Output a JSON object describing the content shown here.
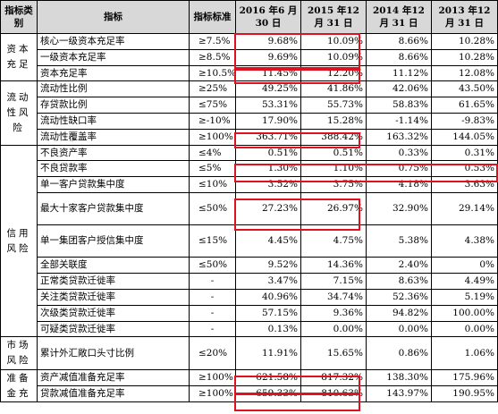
{
  "header": {
    "category": "指标类别",
    "indicator": "指标",
    "standard": "指标标准",
    "col_2016": "2016 年6 月 30 日",
    "col_2015": "2015 年12 月 31 日",
    "col_2014": "2014 年12 月 31 日",
    "col_2013": "2013 年12 月 31 日"
  },
  "categories": {
    "capital": "资本充足",
    "liquidity": "流动性风险",
    "credit": "信用风险",
    "market": "市场风险",
    "provision": "准备金充"
  },
  "rows": [
    {
      "name": "核心一级资本充足率",
      "std": "≥7.5%",
      "v2016": "9.68%",
      "v2015": "10.09%",
      "v2014": "8.66%",
      "v2013": "10.28%"
    },
    {
      "name": "一级资本充足率",
      "std": "≥8.5%",
      "v2016": "9.69%",
      "v2015": "10.09%",
      "v2014": "8.66%",
      "v2013": "10.28%"
    },
    {
      "name": "资本充足率",
      "std": "≥10.5%",
      "v2016": "11.45%",
      "v2015": "12.20%",
      "v2014": "11.12%",
      "v2013": "12.08%"
    },
    {
      "name": "流动性比例",
      "std": "≥25%",
      "v2016": "49.25%",
      "v2015": "41.86%",
      "v2014": "42.06%",
      "v2013": "43.50%"
    },
    {
      "name": "存贷款比例",
      "std": "≤75%",
      "v2016": "53.31%",
      "v2015": "55.73%",
      "v2014": "58.83%",
      "v2013": "61.65%"
    },
    {
      "name": "流动性缺口率",
      "std": "≥-10%",
      "v2016": "17.90%",
      "v2015": "15.28%",
      "v2014": "-1.14%",
      "v2013": "-9.83%"
    },
    {
      "name": "流动性覆盖率",
      "std": "≥100%",
      "v2016": "363.71%",
      "v2015": "388.42%",
      "v2014": "163.32%",
      "v2013": "144.05%"
    },
    {
      "name": "不良资产率",
      "std": "≤4%",
      "v2016": "0.51%",
      "v2015": "0.51%",
      "v2014": "0.33%",
      "v2013": "0.31%"
    },
    {
      "name": "不良贷款率",
      "std": "≤5%",
      "v2016": "1.30%",
      "v2015": "1.10%",
      "v2014": "0.75%",
      "v2013": "0.53%"
    },
    {
      "name": "单一客户贷款集中度",
      "std": "≤10%",
      "v2016": "3.52%",
      "v2015": "3.75%",
      "v2014": "4.18%",
      "v2013": "3.63%"
    },
    {
      "name": "最大十家客户贷款集中度",
      "std": "≤50%",
      "v2016": "27.23%",
      "v2015": "26.97%",
      "v2014": "32.90%",
      "v2013": "29.14%"
    },
    {
      "name": "单一集团客户授信集中度",
      "std": "≤15%",
      "v2016": "4.45%",
      "v2015": "4.75%",
      "v2014": "5.38%",
      "v2013": "4.38%"
    },
    {
      "name": "全部关联度",
      "std": "≤50%",
      "v2016": "9.52%",
      "v2015": "14.36%",
      "v2014": "2.40%",
      "v2013": "0%"
    },
    {
      "name": "正常类贷款迁徙率",
      "std": "-",
      "v2016": "3.47%",
      "v2015": "7.15%",
      "v2014": "8.63%",
      "v2013": "4.49%"
    },
    {
      "name": "关注类贷款迁徙率",
      "std": "-",
      "v2016": "40.96%",
      "v2015": "34.74%",
      "v2014": "52.36%",
      "v2013": "5.19%"
    },
    {
      "name": "次级类贷款迁徙率",
      "std": "-",
      "v2016": "57.15%",
      "v2015": "9.36%",
      "v2014": "94.82%",
      "v2013": "100.00%"
    },
    {
      "name": "可疑类贷款迁徙率",
      "std": "-",
      "v2016": "0.13%",
      "v2015": "0.00%",
      "v2014": "0.00%",
      "v2013": "0.00%"
    },
    {
      "name": "累计外汇敞口头寸比例",
      "std": "≤20%",
      "v2016": "11.91%",
      "v2015": "15.65%",
      "v2014": "0.86%",
      "v2013": "1.06%"
    },
    {
      "name": "资产减值准备充足率",
      "std": "≥100%",
      "v2016": "621.58%",
      "v2015": "817.32%",
      "v2014": "138.30%",
      "v2013": "175.96%"
    },
    {
      "name": "贷款减值准备充足率",
      "std": "≥100%",
      "v2016": "659.33%",
      "v2015": "810.63%",
      "v2014": "143.97%",
      "v2013": "190.95%"
    }
  ]
}
